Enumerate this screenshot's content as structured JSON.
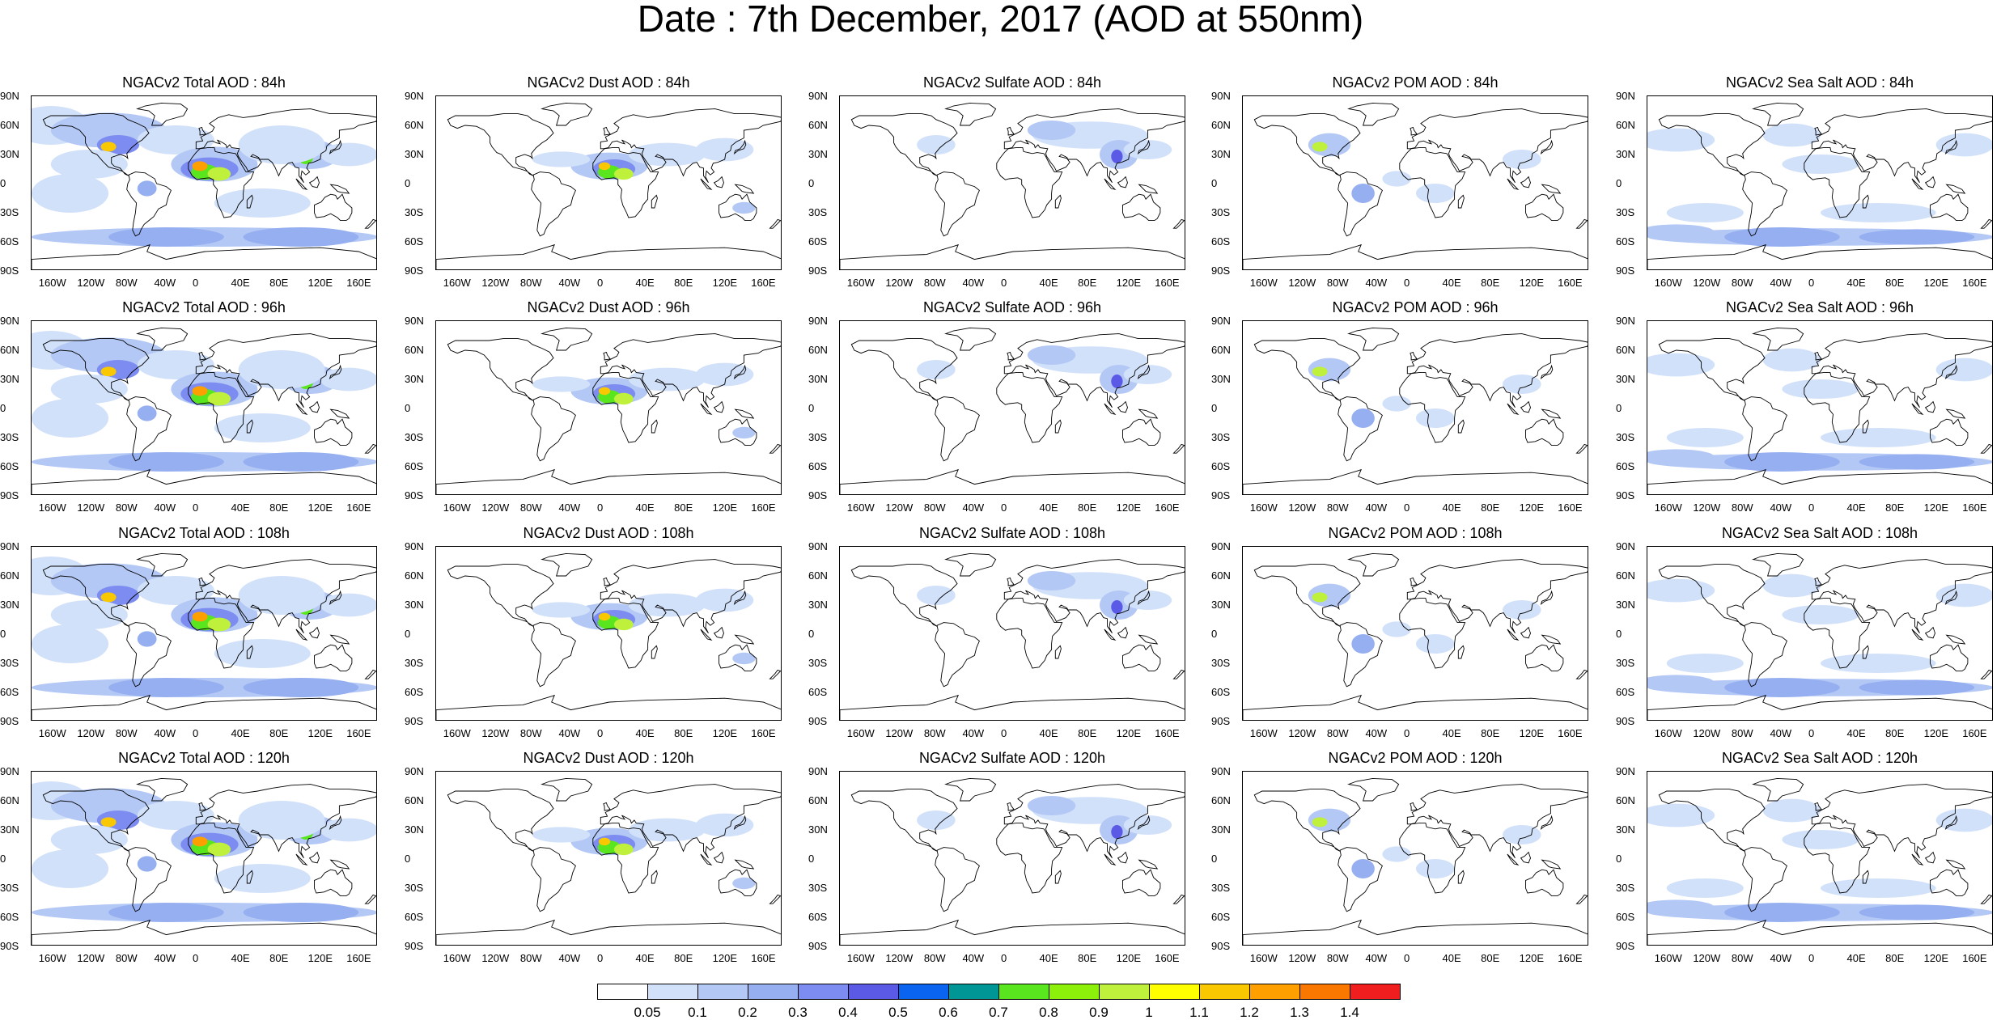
{
  "title": "Date : 7th December, 2017 (AOD at 550nm)",
  "map_axes": {
    "lat_labels": [
      "90N",
      "60N",
      "30N",
      "0",
      "30S",
      "60S",
      "90S"
    ],
    "lon_labels": [
      "160W",
      "120W",
      "80W",
      "40W",
      "0",
      "40E",
      "80E",
      "120E",
      "160E"
    ]
  },
  "panels": [
    {
      "title": "NGACv2 Total AOD : 84h",
      "species": "total",
      "forecast_hour": 84
    },
    {
      "title": "NGACv2 Dust AOD : 84h",
      "species": "dust",
      "forecast_hour": 84
    },
    {
      "title": "NGACv2 Sulfate AOD : 84h",
      "species": "sulfate",
      "forecast_hour": 84
    },
    {
      "title": "NGACv2 POM AOD : 84h",
      "species": "pom",
      "forecast_hour": 84
    },
    {
      "title": "NGACv2 Sea Salt AOD : 84h",
      "species": "seasalt",
      "forecast_hour": 84
    },
    {
      "title": "NGACv2 Total AOD : 96h",
      "species": "total",
      "forecast_hour": 96
    },
    {
      "title": "NGACv2 Dust AOD : 96h",
      "species": "dust",
      "forecast_hour": 96
    },
    {
      "title": "NGACv2 Sulfate AOD : 96h",
      "species": "sulfate",
      "forecast_hour": 96
    },
    {
      "title": "NGACv2 POM AOD : 96h",
      "species": "pom",
      "forecast_hour": 96
    },
    {
      "title": "NGACv2 Sea Salt AOD : 96h",
      "species": "seasalt",
      "forecast_hour": 96
    },
    {
      "title": "NGACv2 Total AOD : 108h",
      "species": "total",
      "forecast_hour": 108
    },
    {
      "title": "NGACv2 Dust AOD : 108h",
      "species": "dust",
      "forecast_hour": 108
    },
    {
      "title": "NGACv2 Sulfate AOD : 108h",
      "species": "sulfate",
      "forecast_hour": 108
    },
    {
      "title": "NGACv2 POM AOD : 108h",
      "species": "pom",
      "forecast_hour": 108
    },
    {
      "title": "NGACv2 Sea Salt AOD : 108h",
      "species": "seasalt",
      "forecast_hour": 108
    },
    {
      "title": "NGACv2 Total AOD : 120h",
      "species": "total",
      "forecast_hour": 120
    },
    {
      "title": "NGACv2 Dust AOD : 120h",
      "species": "dust",
      "forecast_hour": 120
    },
    {
      "title": "NGACv2 Sulfate AOD : 120h",
      "species": "sulfate",
      "forecast_hour": 120
    },
    {
      "title": "NGACv2 POM AOD : 120h",
      "species": "pom",
      "forecast_hour": 120
    },
    {
      "title": "NGACv2 Sea Salt  AOD : 120h",
      "species": "seasalt",
      "forecast_hour": 120
    }
  ],
  "legend": {
    "levels": [
      "0.05",
      "0.1",
      "0.2",
      "0.3",
      "0.4",
      "0.5",
      "0.6",
      "0.7",
      "0.8",
      "0.9",
      "1",
      "1.1",
      "1.2",
      "1.3",
      "1.4"
    ],
    "colors": [
      "#ffffff",
      "#d2e1fa",
      "#b4c8f5",
      "#96aff0",
      "#7d8cf0",
      "#5a5ae6",
      "#0a64f0",
      "#009696",
      "#5ae61e",
      "#8cf00a",
      "#bef03c",
      "#ffff00",
      "#fac800",
      "#ffa000",
      "#fa7800",
      "#f01e1e"
    ]
  },
  "species_colors": {
    "light": "#d2e1fa",
    "medium": "#b4c8f5",
    "strong": "#96aff0",
    "deep": "#7d8cf0"
  }
}
